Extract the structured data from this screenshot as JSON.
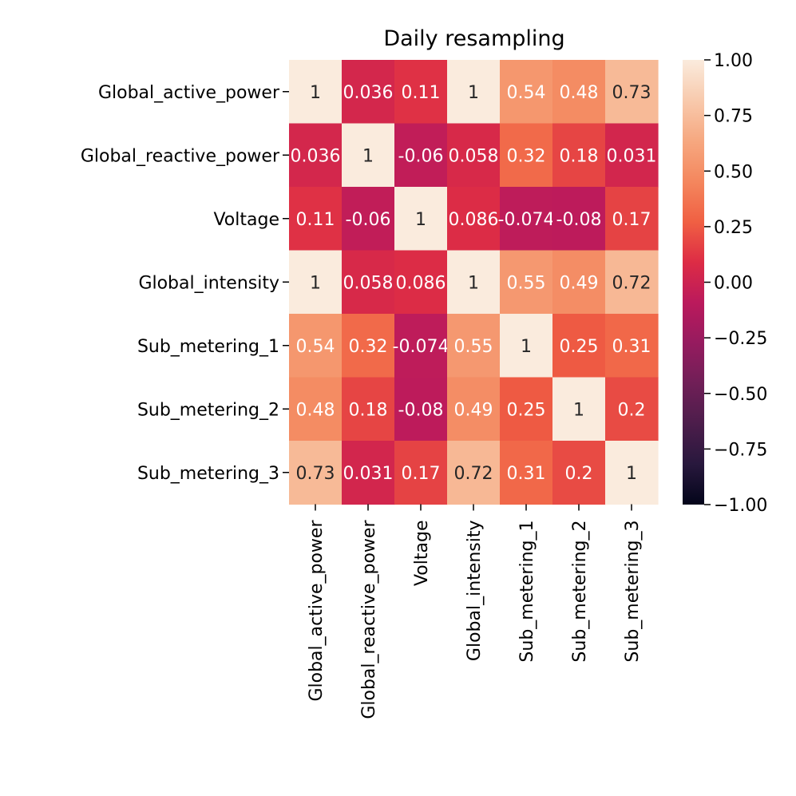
{
  "chart_data": {
    "type": "heatmap",
    "title": "Daily resampling",
    "xlabel": "",
    "ylabel": "",
    "row_labels": [
      "Global_active_power",
      "Global_reactive_power",
      "Voltage",
      "Global_intensity",
      "Sub_metering_1",
      "Sub_metering_2",
      "Sub_metering_3"
    ],
    "col_labels": [
      "Global_active_power",
      "Global_reactive_power",
      "Voltage",
      "Global_intensity",
      "Sub_metering_1",
      "Sub_metering_2",
      "Sub_metering_3"
    ],
    "values": [
      [
        1,
        0.036,
        0.11,
        1,
        0.54,
        0.48,
        0.73
      ],
      [
        0.036,
        1,
        -0.06,
        0.058,
        0.32,
        0.18,
        0.031
      ],
      [
        0.11,
        -0.06,
        1,
        0.086,
        -0.074,
        -0.08,
        0.17
      ],
      [
        1,
        0.058,
        0.086,
        1,
        0.55,
        0.49,
        0.72
      ],
      [
        0.54,
        0.32,
        -0.074,
        0.55,
        1,
        0.25,
        0.31
      ],
      [
        0.48,
        0.18,
        -0.08,
        0.49,
        0.25,
        1,
        0.2
      ],
      [
        0.73,
        0.031,
        0.17,
        0.72,
        0.31,
        0.2,
        1
      ]
    ],
    "annotations": [
      [
        "1",
        "0.036",
        "0.11",
        "1",
        "0.54",
        "0.48",
        "0.73"
      ],
      [
        "0.036",
        "1",
        "-0.06",
        "0.058",
        "0.32",
        "0.18",
        "0.031"
      ],
      [
        "0.11",
        "-0.06",
        "1",
        "0.086",
        "-0.074",
        "-0.08",
        "0.17"
      ],
      [
        "1",
        "0.058",
        "0.086",
        "1",
        "0.55",
        "0.49",
        "0.72"
      ],
      [
        "0.54",
        "0.32",
        "-0.074",
        "0.55",
        "1",
        "0.25",
        "0.31"
      ],
      [
        "0.48",
        "0.18",
        "-0.08",
        "0.49",
        "0.25",
        "1",
        "0.2"
      ],
      [
        "0.73",
        "0.031",
        "0.17",
        "0.72",
        "0.31",
        "0.2",
        "1"
      ]
    ],
    "vmin": -1,
    "vmax": 1,
    "colormap": "rocket",
    "colorbar_ticks": [
      1.0,
      0.75,
      0.5,
      0.25,
      0.0,
      -0.25,
      -0.5,
      -0.75,
      -1.0
    ],
    "colorbar_tick_labels": [
      "1.00",
      "0.75",
      "0.50",
      "0.25",
      "0.00",
      "−0.25",
      "−0.50",
      "−0.75",
      "−1.00"
    ],
    "colormap_stops": [
      "#03051a",
      "#28183d",
      "#4c1d4b",
      "#701f57",
      "#961b5f",
      "#bb1a5c",
      "#dd2c45",
      "#f06043",
      "#f4875e",
      "#f6a880",
      "#f8caad",
      "#faebdd"
    ]
  }
}
